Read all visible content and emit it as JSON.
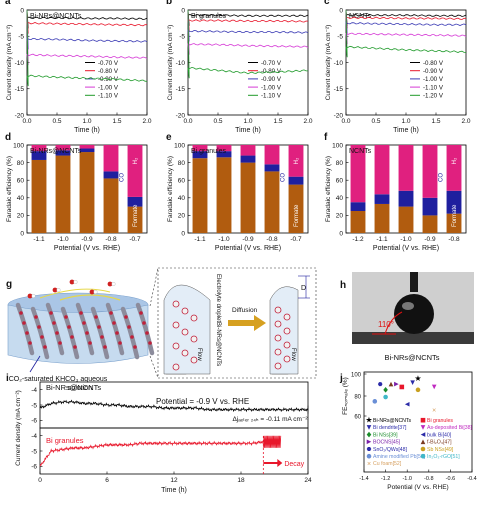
{
  "panels": {
    "a": {
      "letter": "a",
      "label": "Bi-NRs@NCNTs"
    },
    "b": {
      "letter": "b",
      "label": "Bi granules"
    },
    "c": {
      "letter": "c",
      "label": "NCNTs"
    },
    "d": {
      "letter": "d",
      "label": "Bi-NRs@NCNTs"
    },
    "e": {
      "letter": "e",
      "label": "Bi granules"
    },
    "f": {
      "letter": "f",
      "label": "NCNTs"
    },
    "g": {
      "letter": "g",
      "caption": "CO₂-saturated KHCO₃ aqueous solution",
      "electrolyte_droplet": "Electrolyte droplet",
      "binrs": "Bi-NRs@NCNTs",
      "flow": "Flow",
      "diffusion": "Diffusion",
      "d_label": "D"
    },
    "h": {
      "letter": "h",
      "angle": "110°",
      "caption": "Bi-NRs@NCNTs"
    },
    "i": {
      "letter": "i"
    },
    "j": {
      "letter": "j"
    }
  },
  "chart_data": [
    {
      "id": "a",
      "type": "line",
      "xlabel": "Time (h)",
      "ylabel": "Current density (mA cm⁻²)",
      "xlim": [
        0,
        2
      ],
      "ylim": [
        -20,
        0
      ],
      "xticks": [
        "0.0",
        "0.5",
        "1.0",
        "1.5",
        "2.0"
      ],
      "yticks": [
        "0",
        "-5",
        "-10",
        "-15",
        "-20"
      ],
      "series": [
        {
          "name": "-0.70 V",
          "color": "#000000",
          "values": [
            -1.5,
            -1.5,
            -1.6,
            -1.6,
            -1.7
          ]
        },
        {
          "name": "-0.80 V",
          "color": "#e8172b",
          "values": [
            -2.5,
            -2.6,
            -2.7,
            -2.8,
            -2.9
          ]
        },
        {
          "name": "-0.90 V",
          "color": "#3a3ab4",
          "values": [
            -5.5,
            -5.6,
            -5.8,
            -5.9,
            -6.0
          ]
        },
        {
          "name": "-1.00 V",
          "color": "#d63ad6",
          "values": [
            -8.5,
            -8.7,
            -8.8,
            -9.0,
            -9.1
          ]
        },
        {
          "name": "-1.10 V",
          "color": "#1f9a2a",
          "values": [
            -12.5,
            -12.8,
            -13.0,
            -13.2,
            -13.5
          ]
        }
      ]
    },
    {
      "id": "b",
      "type": "line",
      "xlabel": "Time (h)",
      "ylabel": "Current density (mA cm⁻²)",
      "xlim": [
        0,
        2
      ],
      "ylim": [
        -20,
        0
      ],
      "xticks": [
        "0.0",
        "0.5",
        "1.0",
        "1.5",
        "2.0"
      ],
      "yticks": [
        "0",
        "-5",
        "-10",
        "-15",
        "-20"
      ],
      "series": [
        {
          "name": "-0.70 V",
          "color": "#000000",
          "values": [
            -1.0,
            -1.0,
            -1.1,
            -1.1,
            -1.1
          ]
        },
        {
          "name": "-0.80 V",
          "color": "#e8172b",
          "values": [
            -2.0,
            -2.0,
            -2.1,
            -2.1,
            -2.2
          ]
        },
        {
          "name": "-0.90 V",
          "color": "#3a3ab4",
          "values": [
            -4.0,
            -4.1,
            -4.2,
            -4.2,
            -4.3
          ]
        },
        {
          "name": "-1.00 V",
          "color": "#d63ad6",
          "values": [
            -6.5,
            -6.6,
            -6.8,
            -6.9,
            -7.0
          ]
        },
        {
          "name": "-1.10 V",
          "color": "#1f9a2a",
          "values": [
            -11.0,
            -11.5,
            -12.0,
            -11.8,
            -11.5
          ]
        }
      ]
    },
    {
      "id": "c",
      "type": "line",
      "xlabel": "Time (h)",
      "ylabel": "Current density (mA cm⁻²)",
      "xlim": [
        0,
        2
      ],
      "ylim": [
        -20,
        0
      ],
      "xticks": [
        "0.0",
        "0.5",
        "1.0",
        "1.5",
        "2.0"
      ],
      "yticks": [
        "0",
        "-5",
        "-10",
        "-15",
        "-20"
      ],
      "series": [
        {
          "name": "-0.80 V",
          "color": "#000000",
          "values": [
            -1.0,
            -1.0,
            -1.0,
            -1.1,
            -1.1
          ]
        },
        {
          "name": "-0.90 V",
          "color": "#e8172b",
          "values": [
            -1.5,
            -1.5,
            -1.6,
            -1.6,
            -1.7
          ]
        },
        {
          "name": "-1.00 V",
          "color": "#3a3ab4",
          "values": [
            -2.5,
            -2.6,
            -2.7,
            -2.8,
            -2.8
          ]
        },
        {
          "name": "-1.10 V",
          "color": "#d63ad6",
          "values": [
            -4.5,
            -4.6,
            -4.7,
            -4.8,
            -4.9
          ]
        },
        {
          "name": "-1.20 V",
          "color": "#1f9a2a",
          "values": [
            -7.0,
            -7.3,
            -7.6,
            -7.8,
            -8.0
          ]
        }
      ]
    },
    {
      "id": "d",
      "type": "bar",
      "xlabel": "Potential (V vs. RHE)",
      "ylabel": "Faradaic efficiency (%)",
      "ylim": [
        0,
        100
      ],
      "yticks": [
        "0",
        "20",
        "40",
        "60",
        "80",
        "100"
      ],
      "categories": [
        "-1.1",
        "-1.0",
        "-0.9",
        "-0.8",
        "-0.7"
      ],
      "series": [
        {
          "name": "Formate",
          "color": "#b15c0f",
          "values": [
            83,
            88,
            92,
            62,
            30
          ]
        },
        {
          "name": "CO",
          "color": "#1f1f9e",
          "values": [
            10,
            6,
            4,
            8,
            11
          ]
        },
        {
          "name": "H₂",
          "color": "#e0207f",
          "values": [
            7,
            6,
            4,
            30,
            59
          ]
        }
      ]
    },
    {
      "id": "e",
      "type": "bar",
      "xlabel": "Potential (V vs. RHE)",
      "ylabel": "Faradaic efficiency (%)",
      "ylim": [
        0,
        100
      ],
      "yticks": [
        "0",
        "20",
        "40",
        "60",
        "80",
        "100"
      ],
      "categories": [
        "-1.1",
        "-1.0",
        "-0.9",
        "-0.8",
        "-0.7"
      ],
      "series": [
        {
          "name": "Formate",
          "color": "#b15c0f",
          "values": [
            85,
            86,
            80,
            70,
            55
          ]
        },
        {
          "name": "CO",
          "color": "#1f1f9e",
          "values": [
            8,
            7,
            8,
            8,
            9
          ]
        },
        {
          "name": "H₂",
          "color": "#e0207f",
          "values": [
            7,
            7,
            12,
            22,
            36
          ]
        }
      ]
    },
    {
      "id": "f",
      "type": "bar",
      "xlabel": "Potential (V vs. RHE)",
      "ylabel": "Faradaic efficiency (%)",
      "ylim": [
        0,
        100
      ],
      "yticks": [
        "0",
        "20",
        "40",
        "60",
        "80",
        "100"
      ],
      "categories": [
        "-1.2",
        "-1.1",
        "-1.0",
        "-0.9",
        "-0.8"
      ],
      "series": [
        {
          "name": "Formate",
          "color": "#b15c0f",
          "values": [
            25,
            33,
            30,
            20,
            22
          ]
        },
        {
          "name": "CO",
          "color": "#1f1f9e",
          "values": [
            10,
            11,
            18,
            20,
            26
          ]
        },
        {
          "name": "H₂",
          "color": "#e0207f",
          "values": [
            65,
            56,
            52,
            60,
            52
          ]
        }
      ]
    },
    {
      "id": "i",
      "type": "line",
      "xlabel": "Time (h)",
      "ylabel": "Current density (mA cm⁻²)",
      "xlim": [
        0,
        24
      ],
      "xticks": [
        "0",
        "6",
        "12",
        "18",
        "24"
      ],
      "top": {
        "name": "Bi-NRs@NCNTs",
        "potential": "Potential = -0.9 V vs. RHE",
        "delta": "Δjₐₑₜₑᵣ ₂₄ₕ = -0.11 mA cm⁻²",
        "yticks": [
          "-4",
          "-5",
          "-6"
        ],
        "ylim": [
          -6.5,
          -3.5
        ],
        "values": [
          -5.2,
          -4.9,
          -4.8,
          -4.8,
          -4.9,
          -4.9,
          -5.0,
          -5.0,
          -5.1,
          -5.1,
          -5.1,
          -5.2,
          -5.2,
          -5.2,
          -5.2,
          -5.3,
          -5.3,
          -5.3,
          -5.3,
          -5.3,
          -5.3,
          -5.3,
          -5.3,
          -5.3,
          -5.3
        ],
        "color": "#000000"
      },
      "bottom": {
        "name": "Bi granules",
        "decay": "Decay",
        "yticks": [
          "-4",
          "-5",
          "-6"
        ],
        "ylim": [
          -6.5,
          -3.5
        ],
        "values": [
          -6.0,
          -5.0,
          -4.9,
          -4.8,
          -4.8,
          -4.7,
          -4.6,
          -4.6,
          -4.6,
          -4.5,
          -4.5,
          -4.5,
          -4.5,
          -4.5,
          -4.5,
          -4.5,
          -4.5,
          -4.5,
          -4.5,
          -4.5,
          -4.4
        ],
        "decay_x": 20,
        "color": "#e8172b"
      }
    },
    {
      "id": "j",
      "type": "scatter",
      "xlabel": "Potential (V vs. RHE)",
      "ylabel": "FEₙₒᵣₘₐₜₑ (%)",
      "xlim": [
        -1.4,
        -0.4
      ],
      "ylim": [
        60,
        100
      ],
      "xticks": [
        "-1.4",
        "-1.2",
        "-1.0",
        "-0.8",
        "-0.6",
        "-0.4"
      ],
      "yticks": [
        "60",
        "80",
        "100"
      ],
      "series": [
        {
          "name": "Bi-NRs@NCNTs",
          "color": "#000000",
          "marker": "star",
          "points": [
            [
              -0.9,
              92
            ]
          ]
        },
        {
          "name": "Bi granules",
          "color": "#e8172b",
          "marker": "square",
          "points": [
            [
              -1.05,
              86
            ]
          ]
        },
        {
          "name": "Bi dendrite[37]",
          "color": "#2b2ba8",
          "marker": "triangle-down",
          "points": [
            [
              -0.95,
              89
            ]
          ]
        },
        {
          "name": "As-deposited Bi[38]",
          "color": "#c02bc0",
          "marker": "triangle-down",
          "points": [
            [
              -0.75,
              86
            ]
          ]
        },
        {
          "name": "Bi NSs[39]",
          "color": "#1a8c2a",
          "marker": "diamond",
          "points": [
            [
              -1.2,
              84
            ]
          ]
        },
        {
          "name": "bulk Bi[40]",
          "color": "#2b2ba8",
          "marker": "triangle-left",
          "points": [
            [
              -1.0,
              74
            ]
          ]
        },
        {
          "name": "BOCNS[45]",
          "color": "#7a1fa8",
          "marker": "triangle-right",
          "points": [
            [
              -1.1,
              88
            ]
          ]
        },
        {
          "name": "f-Bi₂O₃[47]",
          "color": "#7a3a1f",
          "marker": "triangle-up",
          "points": [
            [
              -1.15,
              88
            ]
          ]
        },
        {
          "name": "SnO₂/QWs[48]",
          "color": "#2b2ba8",
          "marker": "hexagon",
          "points": [
            [
              -1.25,
              88
            ]
          ]
        },
        {
          "name": "Sb NSs[49]",
          "color": "#c8a020",
          "marker": "circle",
          "points": [
            [
              -0.9,
              84
            ]
          ]
        },
        {
          "name": "Amine modified Pb[50]",
          "color": "#6a8fd6",
          "marker": "circle",
          "points": [
            [
              -1.3,
              76
            ]
          ]
        },
        {
          "name": "In₂O₃-rGO[51]",
          "color": "#40b8c8",
          "marker": "circle",
          "points": [
            [
              -1.2,
              79
            ]
          ]
        },
        {
          "name": "Cu foam[52]",
          "color": "#d6a060",
          "marker": "cross",
          "points": [
            [
              -0.75,
              70
            ]
          ]
        }
      ]
    }
  ]
}
